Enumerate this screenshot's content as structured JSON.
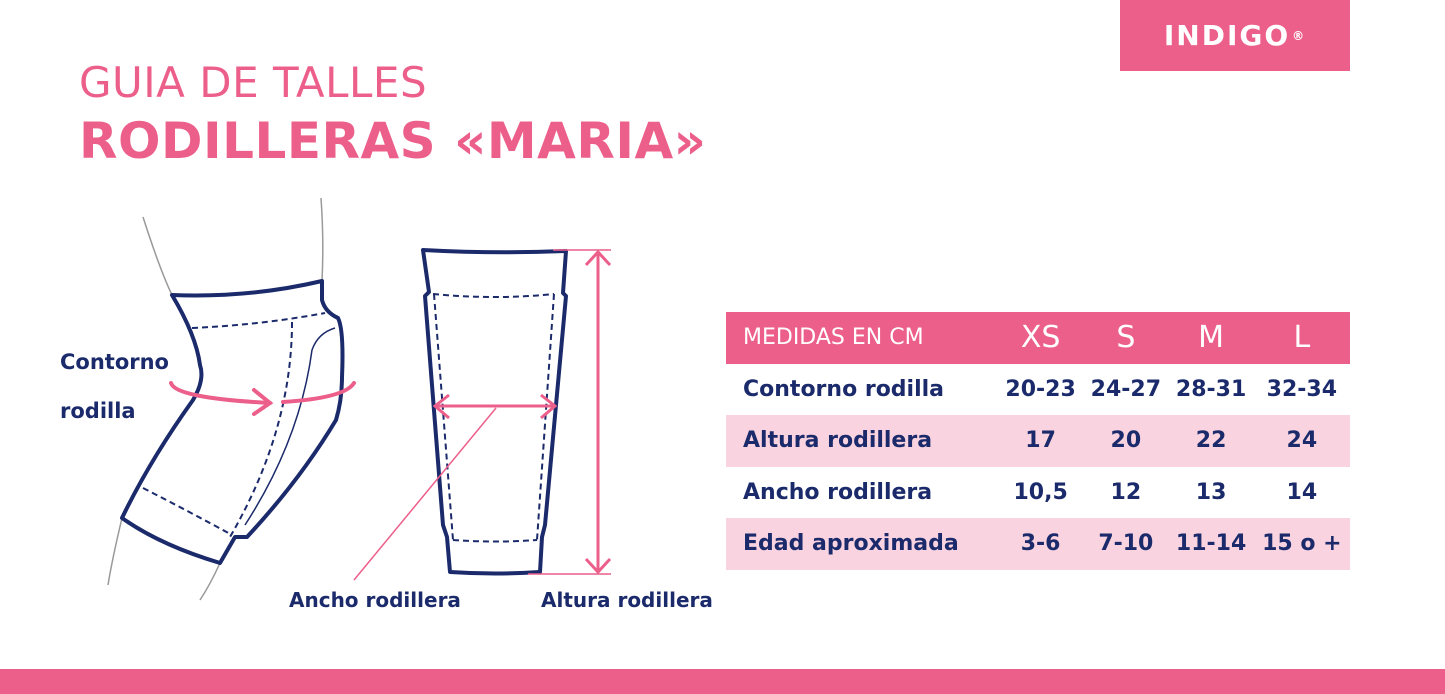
{
  "brand": {
    "logo_text": "INDIGO",
    "registered": "®",
    "color": "#ec5f8a"
  },
  "title": {
    "line1": "GUIA DE TALLES",
    "line2": "RODILLERAS «MARIA»"
  },
  "colors": {
    "accent": "#ec5f8a",
    "text": "#1b2a6b",
    "row_alt": "#f9d3df"
  },
  "diagram": {
    "contour_label_1": "Contorno",
    "contour_label_2": "rodilla",
    "width_label": "Ancho rodillera",
    "height_label": "Altura rodillera"
  },
  "table": {
    "header": [
      "MEDIDAS EN CM",
      "XS",
      "S",
      "M",
      "L"
    ],
    "rows": [
      [
        "Contorno rodilla",
        "20-23",
        "24-27",
        "28-31",
        "32-34"
      ],
      [
        "Altura rodillera",
        "17",
        "20",
        "22",
        "24"
      ],
      [
        "Ancho rodillera",
        "10,5",
        "12",
        "13",
        "14"
      ],
      [
        "Edad aproximada",
        "3-6",
        "7-10",
        "11-14",
        "15 o +"
      ]
    ]
  }
}
